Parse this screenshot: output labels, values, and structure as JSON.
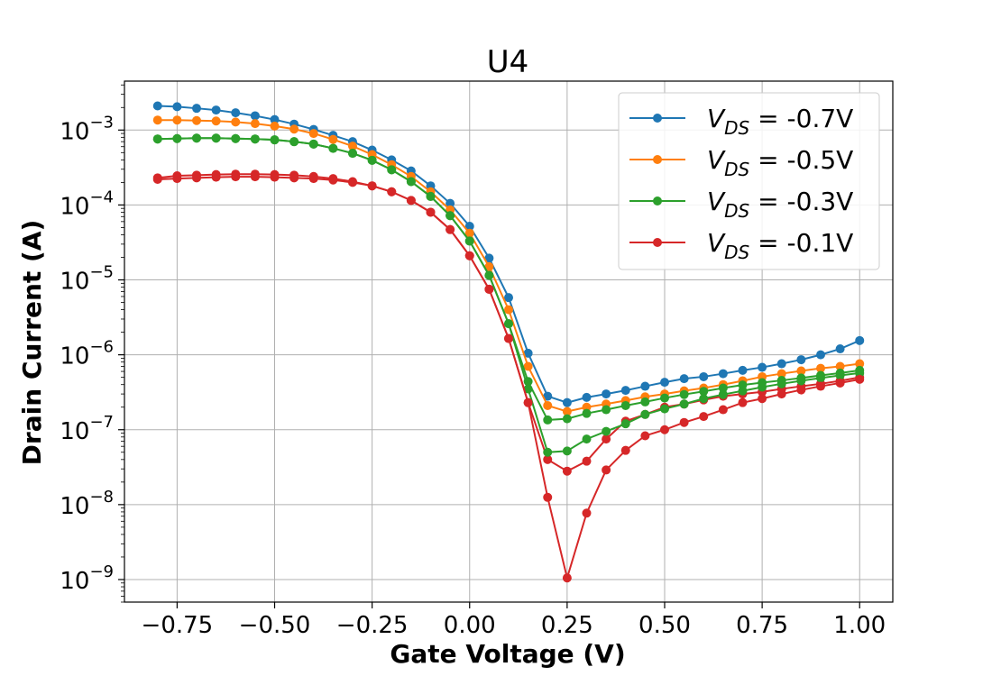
{
  "chart_data": {
    "type": "line",
    "title": "U4",
    "xlabel": "Gate Voltage (V)",
    "ylabel": "Drain Current (A)",
    "yscale": "log",
    "xlim": [
      -0.885,
      1.085
    ],
    "ylim": [
      5e-10,
      0.0045
    ],
    "xticks": [
      -0.75,
      -0.5,
      -0.25,
      0.0,
      0.25,
      0.5,
      0.75,
      1.0
    ],
    "xtick_labels": [
      "−0.75",
      "−0.50",
      "−0.25",
      "0.00",
      "0.25",
      "0.50",
      "0.75",
      "1.00"
    ],
    "yticks": [
      1e-09,
      1e-08,
      1e-07,
      1e-06,
      1e-05,
      0.0001,
      0.001
    ],
    "ytick_exponents": [
      "−9",
      "−8",
      "−7",
      "−6",
      "−5",
      "−4",
      "−3"
    ],
    "ytick_base": "10",
    "grid": true,
    "legend_position": "top-right",
    "x": [
      -0.8,
      -0.75,
      -0.7,
      -0.65,
      -0.6,
      -0.55,
      -0.5,
      -0.45,
      -0.4,
      -0.35,
      -0.3,
      -0.25,
      -0.2,
      -0.15,
      -0.1,
      -0.05,
      0.0,
      0.05,
      0.1,
      0.15,
      0.2,
      0.25,
      0.3,
      0.35,
      0.4,
      0.45,
      0.5,
      0.55,
      0.6,
      0.65,
      0.7,
      0.75,
      0.8,
      0.85,
      0.9,
      0.95,
      1.0
    ],
    "series": [
      {
        "legend_var": "V",
        "legend_sub": "DS",
        "legend_value": " = -0.7V",
        "color": "#1f77b4",
        "values": [
          0.0021,
          0.00205,
          0.00195,
          0.00185,
          0.0017,
          0.00155,
          0.00138,
          0.0012,
          0.00102,
          0.00085,
          0.0007,
          0.00054,
          0.0004,
          0.000285,
          0.00018,
          0.000105,
          5.2e-05,
          1.95e-05,
          5.8e-06,
          1.05e-06,
          2.8e-07,
          2.3e-07,
          2.7e-07,
          3e-07,
          3.35e-07,
          3.8e-07,
          4.3e-07,
          4.8e-07,
          5.1e-07,
          5.6e-07,
          6.2e-07,
          6.8e-07,
          7.6e-07,
          8.6e-07,
          1e-06,
          1.2e-06,
          1.55e-06
        ]
      },
      {
        "legend_var": "V",
        "legend_sub": "DS",
        "legend_value": " = -0.5V",
        "color": "#ff7f0e",
        "values": [
          0.00136,
          0.00136,
          0.00134,
          0.00132,
          0.00128,
          0.00122,
          0.00113,
          0.00103,
          0.0009,
          0.00075,
          0.00061,
          0.00047,
          0.000345,
          0.00024,
          0.00015,
          8.6e-05,
          4.2e-05,
          1.5e-05,
          4e-06,
          7e-07,
          2.1e-07,
          1.75e-07,
          2e-07,
          2.2e-07,
          2.45e-07,
          2.75e-07,
          3e-07,
          3.3e-07,
          3.6e-07,
          4e-07,
          4.5e-07,
          5.1e-07,
          5.6e-07,
          6.1e-07,
          6.6e-07,
          7e-07,
          7.6e-07
        ]
      },
      {
        "legend_var": "V",
        "legend_sub": "DS",
        "legend_value": " = -0.3V",
        "color": "#2ca02c",
        "values": [
          0.00076,
          0.00077,
          0.00078,
          0.00078,
          0.00077,
          0.00076,
          0.00074,
          0.0007,
          0.00065,
          0.00057,
          0.00049,
          0.000395,
          0.000295,
          0.000205,
          0.00013,
          7.2e-05,
          3.3e-05,
          1.15e-05,
          2.6e-06,
          4.4e-07,
          1.35e-07,
          1.4e-07,
          1.65e-07,
          1.85e-07,
          2.1e-07,
          2.35e-07,
          2.65e-07,
          2.95e-07,
          3.25e-07,
          3.6e-07,
          3.95e-07,
          4.25e-07,
          4.55e-07,
          4.9e-07,
          5.3e-07,
          5.7e-07,
          6.2e-07
        ]
      },
      {
        "legend_var": "V",
        "legend_sub": "DS",
        "legend_value": " = -0.1V",
        "color": "#d62728",
        "values": [
          0.00023,
          0.000245,
          0.00025,
          0.000255,
          0.000258,
          0.000258,
          0.000255,
          0.00025,
          0.00024,
          0.000225,
          0.000205,
          0.00018,
          0.00015,
          0.000115,
          8e-05,
          4.7e-05,
          2.1e-05,
          7.5e-06,
          1.65e-06,
          2.3e-07,
          4e-08,
          2.8e-08,
          3.8e-08,
          7.5e-08,
          1.3e-07,
          1.6e-07,
          2e-07,
          2.2e-07,
          2.5e-07,
          2.8e-07,
          3e-07,
          3.2e-07,
          3.5e-07,
          3.8e-07,
          4.1e-07,
          4.5e-07,
          5e-07
        ]
      },
      {
        "color": "#2ca02c",
        "values": [
          0.00076,
          0.00077,
          0.00078,
          0.00078,
          0.00077,
          0.00076,
          0.00074,
          0.0007,
          0.00065,
          0.00057,
          0.00049,
          0.000395,
          0.000295,
          0.000205,
          0.00013,
          7.2e-05,
          3.3e-05,
          1.15e-05,
          2.6e-06,
          3.5e-07,
          5e-08,
          5.2e-08,
          7.5e-08,
          9.5e-08,
          1.2e-07,
          1.6e-07,
          1.9e-07,
          2.2e-07,
          2.6e-07,
          2.95e-07,
          3.3e-07,
          3.7e-07,
          4.1e-07,
          4.5e-07,
          4.9e-07,
          5.3e-07,
          5.7e-07
        ]
      },
      {
        "color": "#d62728",
        "values": [
          0.00022,
          0.000225,
          0.00023,
          0.000235,
          0.000238,
          0.000238,
          0.000235,
          0.00023,
          0.000225,
          0.000215,
          0.0002,
          0.00018,
          0.00015,
          0.000115,
          8e-05,
          4.7e-05,
          2.1e-05,
          7.5e-06,
          1.65e-06,
          2.3e-07,
          1.25e-08,
          1.05e-09,
          7.7e-09,
          2.9e-08,
          5.3e-08,
          8.3e-08,
          1e-07,
          1.25e-07,
          1.5e-07,
          1.85e-07,
          2.3e-07,
          2.6e-07,
          3e-07,
          3.4e-07,
          3.8e-07,
          4.2e-07,
          4.7e-07
        ]
      }
    ]
  }
}
